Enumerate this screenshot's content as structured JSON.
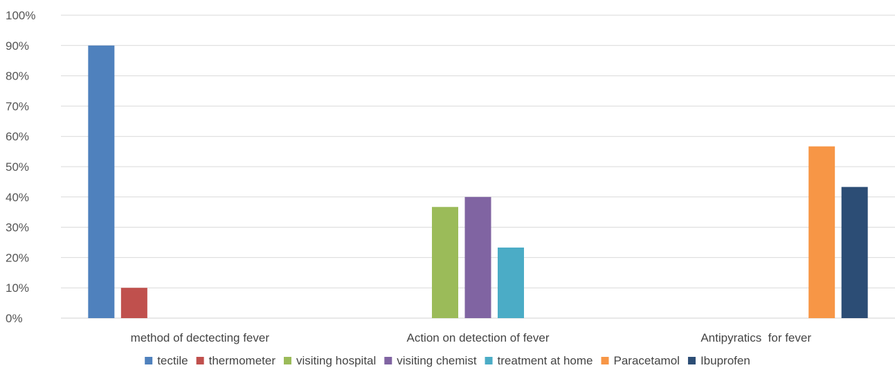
{
  "chart_data": {
    "type": "bar",
    "categories": [
      "method of dectecting fever",
      "Action on detection of fever",
      "Antipyratics  for fever"
    ],
    "ylim": [
      0,
      100
    ],
    "yticks": [
      "0%",
      "10%",
      "20%",
      "30%",
      "40%",
      "50%",
      "60%",
      "70%",
      "80%",
      "90%",
      "100%"
    ],
    "grid": true,
    "legend_position": "bottom",
    "series": [
      {
        "name": "tectile",
        "color": "#4f81bd",
        "values": [
          90,
          null,
          null
        ]
      },
      {
        "name": "thermometer",
        "color": "#c0504d",
        "values": [
          10,
          null,
          null
        ]
      },
      {
        "name": "visiting hospital",
        "color": "#9bbb59",
        "values": [
          null,
          36.7,
          null
        ]
      },
      {
        "name": "visiting chemist",
        "color": "#8064a2",
        "values": [
          null,
          40,
          null
        ]
      },
      {
        "name": "treatment at home",
        "color": "#4bacc6",
        "values": [
          null,
          23.3,
          null
        ]
      },
      {
        "name": "Paracetamol",
        "color": "#f79646",
        "values": [
          null,
          null,
          56.7
        ]
      },
      {
        "name": "Ibuprofen",
        "color": "#2c4d75",
        "values": [
          null,
          null,
          43.3
        ]
      }
    ]
  }
}
